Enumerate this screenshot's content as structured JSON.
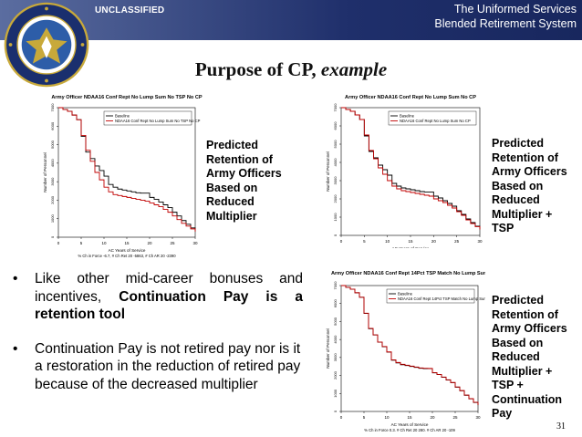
{
  "header": {
    "classification": "UNCLASSIFIED",
    "title_line1": "The Uniformed Services",
    "title_line2": "Blended Retirement System",
    "seal_icon": "department-of-defense-seal-icon"
  },
  "slide": {
    "title_main": "Purpose of CP, ",
    "title_italic": "example",
    "page_number": "31"
  },
  "colors": {
    "banner": "#1f2f6b",
    "baseline_line": "#000000",
    "scenario_line": "#c00000"
  },
  "bullets": [
    {
      "pre": "Like other mid-career bonuses and incentives, ",
      "bold": "Continuation Pay is a retention tool",
      "post": ""
    },
    {
      "pre": "Continuation Pay is not retired pay nor is it a restoration in the reduction of retired pay because of the decreased multiplier",
      "bold": "",
      "post": ""
    }
  ],
  "predictions": [
    [
      "Predicted",
      "Retention of",
      "Army Officers",
      "Based on",
      "Reduced",
      "Multiplier"
    ],
    [
      "Predicted",
      "Retention of",
      "Army Officers",
      "Based on",
      "Reduced",
      "Multiplier +",
      "TSP"
    ],
    [
      "Predicted",
      "Retention of",
      "Army Officers",
      "Based on",
      "Reduced",
      "Multiplier +",
      "TSP +",
      "Continuation",
      "Pay"
    ]
  ],
  "chart_data": [
    {
      "type": "line",
      "title": "Army Officer NDAA16 Conf Rept No Lump Sum No TSP No CP",
      "xlabel": "AC Years of Service",
      "xlabel2": "% Ch in Force -6.7, # Ch Ret 20 -5863, # Ch AR 20 -2390",
      "ylabel": "Number of Personnel",
      "xlim": [
        0,
        30
      ],
      "ylim": [
        0,
        7000
      ],
      "xticks": [
        "0",
        "5",
        "10",
        "15",
        "20",
        "25",
        "30"
      ],
      "yticks": [
        "0",
        "1000",
        "2000",
        "3000",
        "4000",
        "5000",
        "6000",
        "7000"
      ],
      "legend": [
        "Baseline",
        "NDAA16 Conf Rept No Lump Sum No TSP No CP"
      ],
      "x": [
        0,
        1,
        2,
        3,
        4,
        5,
        6,
        7,
        8,
        9,
        10,
        11,
        12,
        13,
        14,
        15,
        16,
        17,
        18,
        19,
        20,
        21,
        22,
        23,
        24,
        25,
        26,
        27,
        28,
        29,
        30
      ],
      "series": [
        {
          "name": "Baseline",
          "values": [
            7000,
            6900,
            6800,
            6600,
            6350,
            5450,
            4600,
            4250,
            3850,
            3600,
            3300,
            2850,
            2700,
            2600,
            2550,
            2500,
            2450,
            2400,
            2380,
            2380,
            2150,
            2050,
            1900,
            1750,
            1600,
            1350,
            1150,
            900,
            700,
            500,
            350
          ]
        },
        {
          "name": "NDAA16 Conf Rept No Lump Sum No TSP No CP",
          "values": [
            7000,
            6900,
            6800,
            6600,
            6350,
            5500,
            4700,
            4100,
            3500,
            3100,
            2700,
            2450,
            2300,
            2250,
            2200,
            2150,
            2100,
            2050,
            2000,
            1950,
            1850,
            1750,
            1650,
            1500,
            1350,
            1150,
            950,
            750,
            600,
            450,
            300
          ]
        }
      ]
    },
    {
      "type": "line",
      "title": "Army Officer NDAA16 Conf Rept No Lump Sum No CP",
      "xlabel": "AC Years of Service",
      "xlabel2": "% Ch in Force -5.7, # Ch Ret 20 -4985, # Ch AR 20 -1513",
      "ylabel": "Number of Personnel",
      "xlim": [
        0,
        30
      ],
      "ylim": [
        0,
        7000
      ],
      "xticks": [
        "0",
        "5",
        "10",
        "15",
        "20",
        "25",
        "30"
      ],
      "yticks": [
        "0",
        "1000",
        "2000",
        "3000",
        "4000",
        "5000",
        "6000",
        "7000"
      ],
      "legend": [
        "Baseline",
        "NDAA16 Conf Rept No Lump Sum No CP"
      ],
      "x": [
        0,
        1,
        2,
        3,
        4,
        5,
        6,
        7,
        8,
        9,
        10,
        11,
        12,
        13,
        14,
        15,
        16,
        17,
        18,
        19,
        20,
        21,
        22,
        23,
        24,
        25,
        26,
        27,
        28,
        29,
        30
      ],
      "series": [
        {
          "name": "Baseline",
          "values": [
            7000,
            6900,
            6800,
            6600,
            6350,
            5450,
            4600,
            4250,
            3850,
            3600,
            3300,
            2850,
            2700,
            2600,
            2550,
            2500,
            2450,
            2400,
            2380,
            2380,
            2150,
            2050,
            1900,
            1750,
            1600,
            1350,
            1150,
            900,
            700,
            500,
            350
          ]
        },
        {
          "name": "NDAA16 Conf Rept No Lump Sum No CP",
          "values": [
            7000,
            6900,
            6800,
            6600,
            6350,
            5500,
            4650,
            4200,
            3700,
            3350,
            3000,
            2700,
            2550,
            2450,
            2400,
            2350,
            2300,
            2250,
            2200,
            2150,
            2000,
            1900,
            1800,
            1650,
            1500,
            1300,
            1100,
            850,
            650,
            480,
            320
          ]
        }
      ]
    },
    {
      "type": "line",
      "title": "Army Officer NDAA16 Conf Rept 14Pct TSP Match No Lump Sum",
      "xlabel": "AC Years of Service",
      "xlabel2": "% Ch in Force 0.3, # Ch Ret 20 280, # Ch AR 20 -109",
      "ylabel": "Number of Personnel",
      "xlim": [
        0,
        30
      ],
      "ylim": [
        0,
        7000
      ],
      "xticks": [
        "0",
        "5",
        "10",
        "15",
        "20",
        "25",
        "30"
      ],
      "yticks": [
        "0",
        "1000",
        "2000",
        "3000",
        "4000",
        "5000",
        "6000",
        "7000"
      ],
      "legend": [
        "Baseline",
        "NDAA16 Conf Rept 14Pct TSP Match No Lump Sum"
      ],
      "x": [
        0,
        1,
        2,
        3,
        4,
        5,
        6,
        7,
        8,
        9,
        10,
        11,
        12,
        13,
        14,
        15,
        16,
        17,
        18,
        19,
        20,
        21,
        22,
        23,
        24,
        25,
        26,
        27,
        28,
        29,
        30
      ],
      "series": [
        {
          "name": "Baseline",
          "values": [
            7000,
            6900,
            6800,
            6600,
            6350,
            5450,
            4600,
            4250,
            3850,
            3600,
            3300,
            2850,
            2700,
            2600,
            2550,
            2500,
            2450,
            2400,
            2380,
            2380,
            2150,
            2050,
            1900,
            1750,
            1600,
            1350,
            1150,
            900,
            700,
            500,
            350
          ]
        },
        {
          "name": "NDAA16 Conf Rept 14Pct TSP Match No Lump Sum",
          "values": [
            7000,
            6900,
            6800,
            6600,
            6350,
            5460,
            4620,
            4260,
            3860,
            3610,
            3310,
            2870,
            2720,
            2620,
            2570,
            2520,
            2470,
            2420,
            2400,
            2390,
            2160,
            2060,
            1910,
            1760,
            1610,
            1360,
            1160,
            910,
            710,
            510,
            360
          ]
        }
      ]
    }
  ]
}
